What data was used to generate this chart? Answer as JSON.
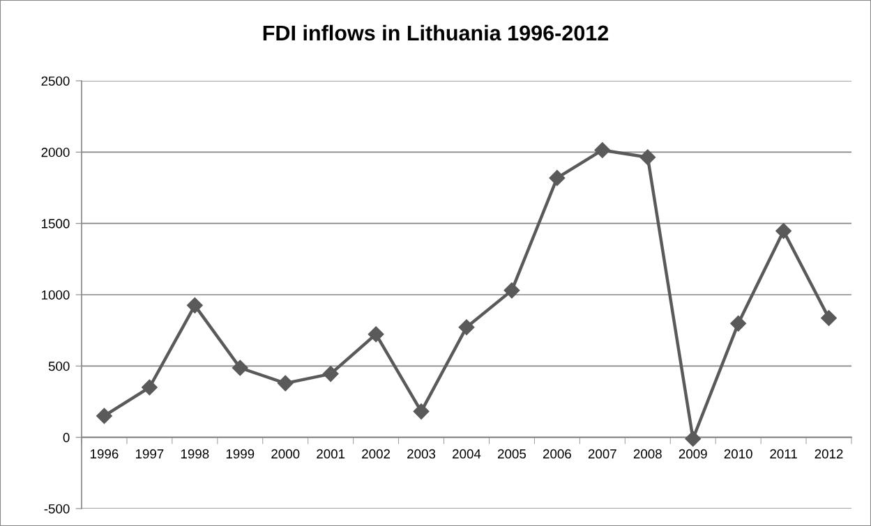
{
  "chart_data": {
    "type": "line",
    "title": "FDI inflows in Lithuania 1996-2012",
    "categories": [
      "1996",
      "1997",
      "1998",
      "1999",
      "2000",
      "2001",
      "2002",
      "2003",
      "2004",
      "2005",
      "2006",
      "2007",
      "2008",
      "2009",
      "2010",
      "2011",
      "2012"
    ],
    "series": [
      {
        "color": "#5a5a5a",
        "values": [
          150,
          350,
          925,
          487,
          379,
          445,
          723,
          181,
          772,
          1030,
          1819,
          2014,
          1964,
          -10,
          798,
          1447,
          836
        ]
      }
    ],
    "ylim": [
      -500,
      2500
    ],
    "yticks": [
      -500,
      0,
      500,
      1000,
      1500,
      2000,
      2500
    ],
    "grid": "y",
    "marker": "diamond",
    "line_style": "solid"
  }
}
